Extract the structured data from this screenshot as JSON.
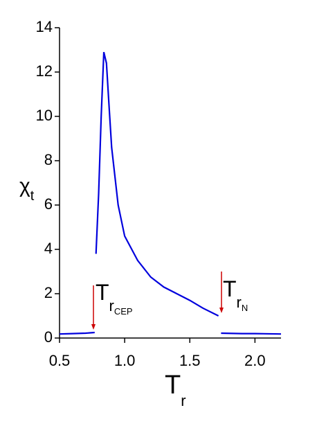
{
  "chart_data": {
    "type": "line",
    "xlabel": {
      "text": "T",
      "sub": "r"
    },
    "ylabel": {
      "text": "χ",
      "sub": "t"
    },
    "x": [
      0.5,
      0.6,
      0.7,
      0.77,
      0.775,
      0.78,
      0.8,
      0.82,
      0.84,
      0.86,
      0.88,
      0.9,
      0.95,
      1.0,
      1.1,
      1.2,
      1.3,
      1.4,
      1.5,
      1.6,
      1.72,
      1.73,
      1.74,
      1.9,
      2.0,
      2.2
    ],
    "series": [
      {
        "color": "#0000dd",
        "values": [
          0.18,
          0.2,
          0.22,
          0.25,
          null,
          3.8,
          6.5,
          10,
          12.9,
          12.4,
          10.5,
          8.6,
          6.0,
          4.6,
          3.5,
          2.75,
          2.3,
          2.0,
          1.7,
          1.35,
          1.0,
          null,
          0.22,
          0.2,
          0.2,
          0.18
        ]
      }
    ],
    "xlim": [
      0.5,
      2.2
    ],
    "ylim": [
      0,
      14
    ],
    "xticks": [
      0.5,
      {
        "value": 1.0,
        "label": "1.0"
      },
      1.5,
      {
        "value": 2.0,
        "label": "2.0"
      }
    ],
    "yticks": [
      0,
      2,
      4,
      6,
      8,
      10,
      12,
      14
    ],
    "annotations": [
      {
        "text": "T",
        "sub": "r",
        "subsub": "CEP",
        "color": "#cc0000"
      },
      {
        "text": "T",
        "sub": "r",
        "subsub": "N",
        "color": "#cc0000"
      }
    ]
  }
}
